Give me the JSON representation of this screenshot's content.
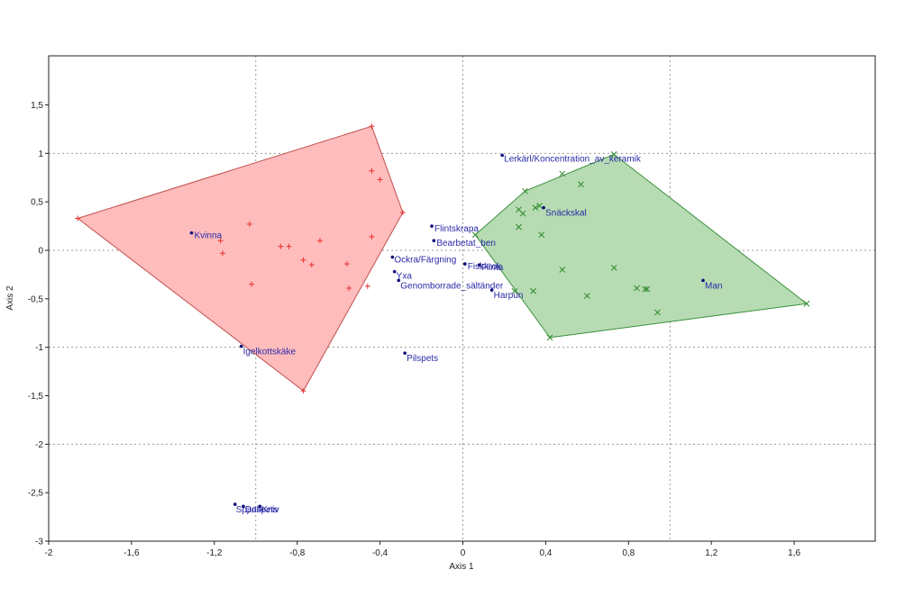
{
  "chart_data": {
    "type": "scatter",
    "xlabel": "Axis 1",
    "ylabel": "Axis 2",
    "xlim": [
      -2,
      2.0
    ],
    "ylim": [
      -3,
      2.0
    ],
    "x_ticks": [
      -2,
      -1.6,
      -1.2,
      -0.8,
      -0.4,
      0,
      0.4,
      0.8,
      1.2,
      1.6
    ],
    "y_ticks": [
      1.5,
      1,
      0.5,
      0,
      -0.5,
      -1,
      -1.5,
      -2,
      -2.5,
      -3
    ],
    "x_tick_labels": [
      "-2",
      "-1,6",
      "-1,2",
      "-0,8",
      "-0,4",
      "0",
      "0,4",
      "0,8",
      "1,2",
      "1,6"
    ],
    "y_tick_labels": [
      "1,5",
      "1",
      "0,5",
      "0",
      "-0,5",
      "-1",
      "-1,5",
      "-2",
      "-2,5",
      "-3"
    ],
    "reference_lines_x": [
      -1,
      0,
      1
    ],
    "reference_lines_y": [
      1,
      0,
      -1,
      -2
    ],
    "colors": {
      "red_hull_fill": "#ffbcbc",
      "red_hull_stroke": "#c0504d",
      "red_marker": "#e53030",
      "green_hull_fill": "#b7dcb3",
      "green_hull_stroke": "#3a8f3a",
      "green_marker": "#2e8b2e",
      "variable_point": "#0b0b78",
      "variable_label": "#2a2aa8",
      "reference_line": "#999999",
      "frame": "#222222"
    },
    "groups": [
      {
        "marker": "+",
        "color": "#e53030",
        "hull": [
          [
            -1.86,
            0.33
          ],
          [
            -0.44,
            1.28
          ],
          [
            -0.29,
            0.39
          ],
          [
            -0.77,
            -1.45
          ],
          [
            -1.86,
            0.33
          ]
        ],
        "points": [
          [
            -1.86,
            0.33
          ],
          [
            -0.44,
            1.28
          ],
          [
            -0.29,
            0.39
          ],
          [
            -0.77,
            -1.45
          ],
          [
            -0.44,
            0.82
          ],
          [
            -0.4,
            0.73
          ],
          [
            -1.03,
            0.27
          ],
          [
            -1.17,
            0.1
          ],
          [
            -1.16,
            -0.03
          ],
          [
            -0.88,
            0.04
          ],
          [
            -0.84,
            0.04
          ],
          [
            -0.69,
            0.1
          ],
          [
            -0.44,
            0.14
          ],
          [
            -0.77,
            -0.1
          ],
          [
            -0.73,
            -0.15
          ],
          [
            -0.56,
            -0.14
          ],
          [
            -1.02,
            -0.35
          ],
          [
            -0.55,
            -0.39
          ],
          [
            -0.46,
            -0.37
          ]
        ]
      },
      {
        "marker": "x",
        "color": "#2e8b2e",
        "hull": [
          [
            0.06,
            0.16
          ],
          [
            0.3,
            0.61
          ],
          [
            0.73,
            0.99
          ],
          [
            1.66,
            -0.55
          ],
          [
            0.42,
            -0.9
          ],
          [
            0.06,
            0.16
          ]
        ],
        "points": [
          [
            0.06,
            0.16
          ],
          [
            0.3,
            0.61
          ],
          [
            0.73,
            0.99
          ],
          [
            1.66,
            -0.55
          ],
          [
            0.42,
            -0.9
          ],
          [
            0.48,
            0.79
          ],
          [
            0.57,
            0.68
          ],
          [
            0.35,
            0.44
          ],
          [
            0.37,
            0.46
          ],
          [
            0.27,
            0.42
          ],
          [
            0.29,
            0.38
          ],
          [
            0.27,
            0.24
          ],
          [
            0.38,
            0.16
          ],
          [
            0.48,
            -0.2
          ],
          [
            0.73,
            -0.18
          ],
          [
            0.25,
            -0.42
          ],
          [
            0.34,
            -0.42
          ],
          [
            0.6,
            -0.47
          ],
          [
            0.84,
            -0.39
          ],
          [
            0.88,
            -0.4
          ],
          [
            0.89,
            -0.4
          ],
          [
            0.94,
            -0.64
          ]
        ]
      }
    ],
    "variables": [
      {
        "label": "Kvinna",
        "x": -1.31,
        "y": 0.18,
        "dx": 3,
        "dy": 6
      },
      {
        "label": "Lerkärl/Koncentration_av_keramik",
        "x": 0.19,
        "y": 0.98,
        "dx": 2,
        "dy": 7
      },
      {
        "label": "Snäckskal",
        "x": 0.39,
        "y": 0.44,
        "dx": 2,
        "dy": 9
      },
      {
        "label": "Flintskrapa",
        "x": -0.15,
        "y": 0.25,
        "dx": 3,
        "dy": 6
      },
      {
        "label": "Bearbetat_ben",
        "x": -0.14,
        "y": 0.1,
        "dx": 3,
        "dy": 6
      },
      {
        "label": "Ockra/Färgning",
        "x": -0.34,
        "y": -0.07,
        "dx": 2,
        "dy": 6
      },
      {
        "label": "Fiskkrok",
        "x": 0.01,
        "y": -0.14,
        "dx": 3,
        "dy": 6
      },
      {
        "label": "Flinta",
        "x": 0.08,
        "y": -0.15,
        "dx": 2,
        "dy": 6
      },
      {
        "label": "Yxa",
        "x": -0.33,
        "y": -0.22,
        "dx": 2,
        "dy": 8
      },
      {
        "label": "Genomborrade_sältänder",
        "x": -0.31,
        "y": -0.31,
        "dx": 2,
        "dy": 9
      },
      {
        "label": "Harpun",
        "x": 0.14,
        "y": -0.41,
        "dx": 2,
        "dy": 9
      },
      {
        "label": "Man",
        "x": 1.16,
        "y": -0.31,
        "dx": 2,
        "dy": 9
      },
      {
        "label": "Igelkottskäke",
        "x": -1.07,
        "y": -0.99,
        "dx": 2,
        "dy": 9
      },
      {
        "label": "Pilspets",
        "x": -0.28,
        "y": -1.06,
        "dx": 2,
        "dy": 9
      },
      {
        "label": "Spjutspets",
        "x": -1.1,
        "y": -2.62,
        "dx": 1,
        "dy": 9
      },
      {
        "label": "Dolk",
        "x": -1.06,
        "y": -2.64,
        "dx": 2,
        "dy": 7
      },
      {
        "label": "Kniv",
        "x": -0.98,
        "y": -2.64,
        "dx": 2,
        "dy": 7
      }
    ]
  }
}
